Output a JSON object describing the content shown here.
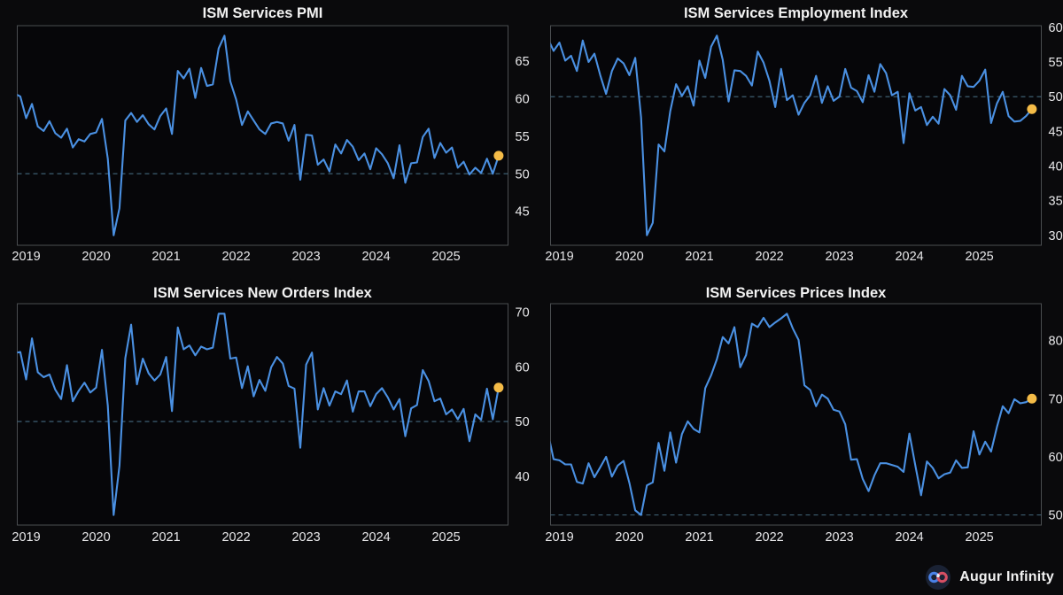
{
  "page": {
    "background": "#0a0a0c",
    "footer": {
      "brand": "Augur Infinity",
      "logo_icon": "infinity-icon"
    }
  },
  "style": {
    "line_color": "#4a90e2",
    "marker_color": "#f4bb47",
    "reference_line_color": "#44687e",
    "frame_color": "#4a4d50",
    "plot_background": "#060609",
    "tick_label_color": "#e8e8ea",
    "title_color": "#f3f3f3"
  },
  "chart_data": [
    {
      "type": "line",
      "title": "ISM Services PMI",
      "x_range": {
        "start": "2018-11",
        "end": "2025-10",
        "frequency": "monthly"
      },
      "x_tick_labels": [
        "2019",
        "2020",
        "2021",
        "2022",
        "2023",
        "2024",
        "2025"
      ],
      "y_ticks": [
        45,
        50,
        55,
        60,
        65
      ],
      "y_axis_side": "right",
      "reference_line": 50,
      "grid": false,
      "legend": "none",
      "latest_value": 52.4,
      "values": [
        60.7,
        60.3,
        57.4,
        59.3,
        56.3,
        55.7,
        57.0,
        55.4,
        54.8,
        56.0,
        53.5,
        54.6,
        54.3,
        55.3,
        55.5,
        57.3,
        52.0,
        41.8,
        45.4,
        57.1,
        58.1,
        56.9,
        57.8,
        56.6,
        55.9,
        57.7,
        58.7,
        55.3,
        63.7,
        62.7,
        64.0,
        60.1,
        64.1,
        61.7,
        61.9,
        66.7,
        68.4,
        62.3,
        59.9,
        56.5,
        58.3,
        57.1,
        55.9,
        55.3,
        56.7,
        56.9,
        56.7,
        54.4,
        56.5,
        49.2,
        55.2,
        55.1,
        51.2,
        51.9,
        50.3,
        53.9,
        52.7,
        54.5,
        53.6,
        51.8,
        52.7,
        50.6,
        53.4,
        52.6,
        51.4,
        49.4,
        53.8,
        48.8,
        51.4,
        51.5,
        54.9,
        56.0,
        52.1,
        54.1,
        52.8,
        53.5,
        50.8,
        51.6,
        49.9,
        50.8,
        50.1,
        52.0,
        50.0,
        52.4
      ]
    },
    {
      "type": "line",
      "title": "ISM Services Employment Index",
      "x_range": {
        "start": "2018-11",
        "end": "2025-10",
        "frequency": "monthly"
      },
      "x_tick_labels": [
        "2019",
        "2020",
        "2021",
        "2022",
        "2023",
        "2024",
        "2025"
      ],
      "y_ticks": [
        30,
        35,
        40,
        45,
        50,
        55,
        60
      ],
      "y_axis_side": "right",
      "reference_line": 50,
      "grid": false,
      "legend": "none",
      "latest_value": 48.2,
      "values": [
        58.4,
        56.6,
        57.8,
        55.2,
        55.9,
        53.7,
        58.1,
        55.0,
        56.2,
        53.1,
        50.4,
        53.7,
        55.5,
        54.8,
        53.1,
        55.6,
        47.0,
        30.0,
        31.8,
        43.1,
        42.1,
        47.9,
        51.8,
        50.1,
        51.5,
        48.7,
        55.2,
        52.7,
        57.2,
        58.8,
        55.3,
        49.3,
        53.8,
        53.7,
        53.0,
        51.6,
        56.5,
        54.9,
        52.3,
        48.5,
        54.0,
        49.5,
        50.2,
        47.4,
        49.1,
        50.2,
        53.0,
        49.1,
        51.5,
        49.4,
        50.0,
        54.0,
        51.3,
        50.8,
        49.2,
        53.1,
        50.7,
        54.7,
        53.4,
        50.2,
        50.7,
        43.3,
        50.5,
        48.0,
        48.5,
        45.9,
        47.1,
        46.1,
        51.1,
        50.2,
        48.1,
        53.0,
        51.5,
        51.4,
        52.3,
        53.9,
        46.2,
        49.0,
        50.7,
        47.2,
        46.4,
        46.5,
        47.2,
        48.2
      ]
    },
    {
      "type": "line",
      "title": "ISM Services New Orders Index",
      "x_range": {
        "start": "2018-11",
        "end": "2025-10",
        "frequency": "monthly"
      },
      "x_tick_labels": [
        "2019",
        "2020",
        "2021",
        "2022",
        "2023",
        "2024",
        "2025"
      ],
      "y_ticks": [
        40,
        50,
        60,
        70
      ],
      "y_axis_side": "right",
      "reference_line": 50,
      "grid": false,
      "legend": "none",
      "latest_value": 56.2,
      "values": [
        62.5,
        62.7,
        57.7,
        65.2,
        59.0,
        58.1,
        58.6,
        55.8,
        54.1,
        60.3,
        53.7,
        55.6,
        57.1,
        55.3,
        56.2,
        63.1,
        52.9,
        32.9,
        41.9,
        61.6,
        67.7,
        56.8,
        61.5,
        58.8,
        57.5,
        58.6,
        61.8,
        51.9,
        67.2,
        63.2,
        63.9,
        62.1,
        63.7,
        63.2,
        63.5,
        69.7,
        69.7,
        61.5,
        61.7,
        56.1,
        60.1,
        54.6,
        57.6,
        55.6,
        59.9,
        61.8,
        60.6,
        56.5,
        56.0,
        45.2,
        60.4,
        62.6,
        52.2,
        56.1,
        52.9,
        55.5,
        55.0,
        57.5,
        51.8,
        55.5,
        55.5,
        52.8,
        55.0,
        56.1,
        54.4,
        52.2,
        54.1,
        47.3,
        52.4,
        53.0,
        59.4,
        57.4,
        53.7,
        54.2,
        51.3,
        52.2,
        50.4,
        52.3,
        46.4,
        51.3,
        50.3,
        56.0,
        50.4,
        56.2
      ]
    },
    {
      "type": "line",
      "title": "ISM Services Prices Index",
      "x_range": {
        "start": "2018-11",
        "end": "2025-10",
        "frequency": "monthly"
      },
      "x_tick_labels": [
        "2019",
        "2020",
        "2021",
        "2022",
        "2023",
        "2024",
        "2025"
      ],
      "y_ticks": [
        50,
        60,
        70,
        80
      ],
      "y_axis_side": "right",
      "reference_line": 50,
      "grid": false,
      "legend": "none",
      "latest_value": 70.0,
      "values": [
        64.3,
        59.6,
        59.4,
        58.7,
        58.7,
        55.7,
        55.4,
        58.9,
        56.5,
        58.2,
        60.0,
        56.6,
        58.5,
        59.3,
        55.5,
        50.8,
        50.0,
        55.1,
        55.6,
        62.4,
        57.6,
        64.2,
        59.0,
        63.9,
        66.1,
        64.8,
        64.2,
        71.8,
        74.0,
        76.8,
        80.6,
        79.5,
        82.3,
        75.4,
        77.5,
        82.9,
        82.3,
        83.9,
        82.3,
        83.1,
        83.8,
        84.6,
        82.1,
        80.1,
        72.3,
        71.5,
        68.7,
        70.7,
        70.0,
        68.1,
        67.8,
        65.6,
        59.5,
        59.6,
        56.2,
        54.1,
        56.8,
        58.9,
        58.9,
        58.6,
        58.3,
        57.4,
        64.0,
        58.6,
        53.4,
        59.2,
        58.1,
        56.3,
        57.0,
        57.3,
        59.4,
        58.1,
        58.2,
        64.4,
        60.4,
        62.6,
        60.9,
        65.1,
        68.7,
        67.5,
        69.9,
        69.2,
        69.4,
        70.0
      ]
    }
  ]
}
